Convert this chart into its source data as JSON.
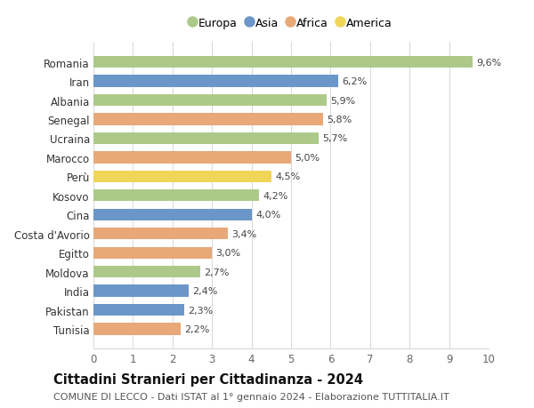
{
  "countries": [
    "Romania",
    "Iran",
    "Albania",
    "Senegal",
    "Ucraina",
    "Marocco",
    "Perù",
    "Kosovo",
    "Cina",
    "Costa d'Avorio",
    "Egitto",
    "Moldova",
    "India",
    "Pakistan",
    "Tunisia"
  ],
  "values": [
    9.6,
    6.2,
    5.9,
    5.8,
    5.7,
    5.0,
    4.5,
    4.2,
    4.0,
    3.4,
    3.0,
    2.7,
    2.4,
    2.3,
    2.2
  ],
  "labels": [
    "9,6%",
    "6,2%",
    "5,9%",
    "5,8%",
    "5,7%",
    "5,0%",
    "4,5%",
    "4,2%",
    "4,0%",
    "3,4%",
    "3,0%",
    "2,7%",
    "2,4%",
    "2,3%",
    "2,2%"
  ],
  "continents": [
    "Europa",
    "Asia",
    "Europa",
    "Africa",
    "Europa",
    "Africa",
    "America",
    "Europa",
    "Asia",
    "Africa",
    "Africa",
    "Europa",
    "Asia",
    "Asia",
    "Africa"
  ],
  "colors": {
    "Europa": "#adc98a",
    "Asia": "#6b96c8",
    "Africa": "#e8a878",
    "America": "#f0d558"
  },
  "legend_order": [
    "Europa",
    "Asia",
    "Africa",
    "America"
  ],
  "title1": "Cittadini Stranieri per Cittadinanza - 2024",
  "title2": "COMUNE DI LECCO - Dati ISTAT al 1° gennaio 2024 - Elaborazione TUTTITALIA.IT",
  "xlim": [
    0,
    10
  ],
  "xticks": [
    0,
    1,
    2,
    3,
    4,
    5,
    6,
    7,
    8,
    9,
    10
  ],
  "background_color": "#ffffff",
  "grid_color": "#d8d8d8",
  "bar_height": 0.62,
  "label_fontsize": 8.0,
  "tick_fontsize": 8.5,
  "country_fontsize": 8.5,
  "title1_fontsize": 10.5,
  "title2_fontsize": 8.0,
  "legend_fontsize": 9.0
}
